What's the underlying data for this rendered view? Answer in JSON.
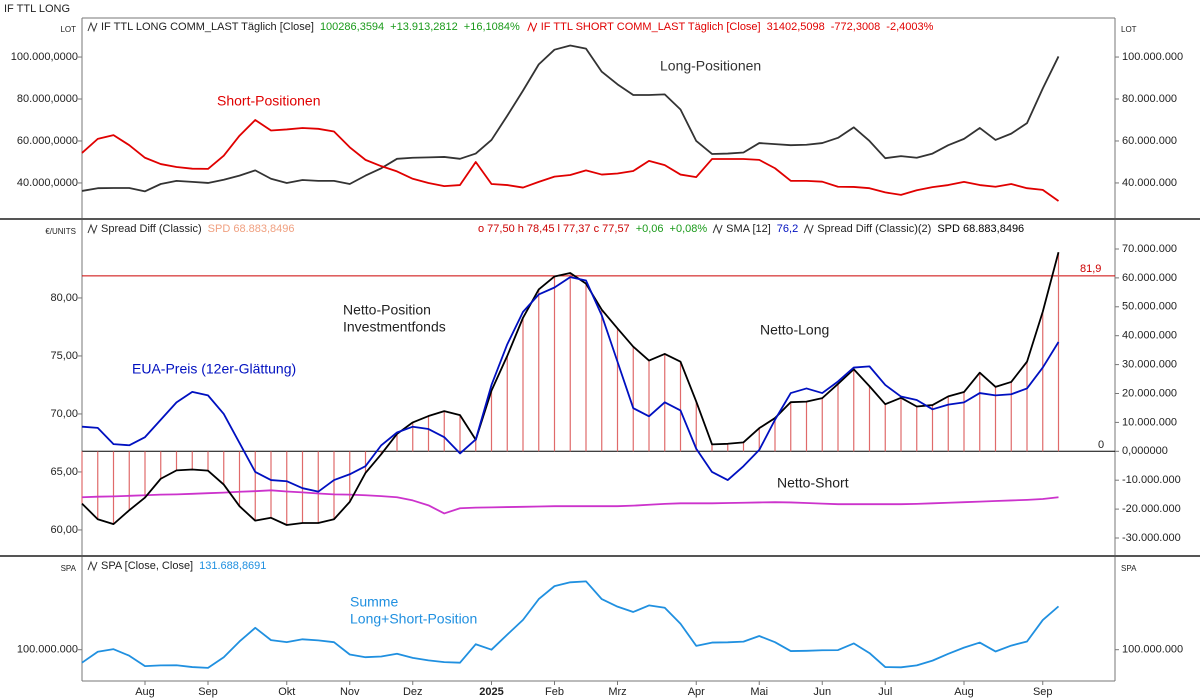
{
  "title": "IF TTL LONG",
  "chart_data": [
    {
      "type": "line",
      "y_unit_label": "LOT",
      "y2_unit_label": "LOT",
      "ylim": [
        23300,
        118600
      ],
      "yticks": [
        {
          "value": 40000,
          "label": "40.000,0000"
        },
        {
          "value": 60000,
          "label": "60.000,0000"
        },
        {
          "value": 80000,
          "label": "80.000,0000"
        },
        {
          "value": 100000,
          "label": "100.000,0000"
        }
      ],
      "y2lim": [
        23300000,
        118600000
      ],
      "y2ticks": [
        {
          "value": 40000000,
          "label": "40.000.000"
        },
        {
          "value": 60000000,
          "label": "60.000.000"
        },
        {
          "value": 80000000,
          "label": "80.000.000"
        },
        {
          "value": 100000000,
          "label": "100.000.000"
        }
      ],
      "series": [
        {
          "name": "IF TTL LONG COMM_LAST Täglich [Close]",
          "color": "#333333",
          "legend_color": "#1a9a1a",
          "legend_values": [
            "100286,3594",
            "+13.913,2812",
            "+16,1084%"
          ],
          "values": [
            36200,
            37500,
            37600,
            37600,
            36000,
            39500,
            41000,
            40500,
            40000,
            41500,
            43500,
            46000,
            42000,
            40000,
            41400,
            41000,
            41000,
            39500,
            43500,
            47000,
            51500,
            52000,
            52200,
            52400,
            51500,
            54000,
            60500,
            72000,
            84000,
            96500,
            103500,
            105500,
            104000,
            93000,
            87000,
            81900,
            81900,
            82200,
            75000,
            60000,
            53800,
            54000,
            54500,
            59000,
            58500,
            58000,
            58200,
            59000,
            61500,
            66500,
            60000,
            51800,
            52800,
            52000,
            54000,
            58000,
            61000,
            66200,
            60500,
            63500,
            68500,
            85000,
            100286.3594
          ]
        },
        {
          "name": "IF TTL SHORT COMM_LAST Täglich [Close]",
          "color": "#e00000",
          "legend_color": "#e00000",
          "legend_values": [
            "31402,5098",
            "-772,3008",
            "-2,4003%"
          ],
          "values": [
            54300,
            61000,
            62800,
            58000,
            52000,
            49000,
            47600,
            46800,
            46700,
            53000,
            62500,
            70000,
            65000,
            65500,
            66200,
            65800,
            64500,
            57000,
            51000,
            48000,
            45500,
            42000,
            40000,
            38500,
            39000,
            50000,
            39500,
            39000,
            37800,
            40500,
            43000,
            43800,
            46000,
            44000,
            44500,
            45700,
            50500,
            48500,
            44000,
            42800,
            51400,
            51400,
            51400,
            51000,
            47000,
            41000,
            41000,
            40600,
            38200,
            38100,
            37500,
            35500,
            34300,
            36500,
            38000,
            39000,
            40500,
            39000,
            38200,
            39500,
            37500,
            36700,
            31402.5098
          ]
        }
      ],
      "annotations": [
        {
          "lines": [
            "Long-Positionen"
          ],
          "color": "#333333"
        },
        {
          "lines": [
            "Short-Positionen"
          ],
          "color": "#e00000"
        }
      ]
    },
    {
      "type": "line",
      "y_unit_label": "€/UNITS",
      "ylim": [
        57.84,
        86.72
      ],
      "yticks": [
        {
          "value": 60,
          "label": "60,00"
        },
        {
          "value": 65,
          "label": "65,00"
        },
        {
          "value": 70,
          "label": "70,00"
        },
        {
          "value": 75,
          "label": "75,00"
        },
        {
          "value": 80,
          "label": "80,00"
        }
      ],
      "y2lim": [
        -35880000,
        80030000
      ],
      "y2ticks": [
        {
          "value": -30000000,
          "label": "-30.000.000"
        },
        {
          "value": -20000000,
          "label": "-20.000.000"
        },
        {
          "value": -10000000,
          "label": "-10.000.000"
        },
        {
          "value": 0,
          "label": "0,000000"
        },
        {
          "value": 10000000,
          "label": "10.000.000"
        },
        {
          "value": 20000000,
          "label": "20.000.000"
        },
        {
          "value": 30000000,
          "label": "30.000.000"
        },
        {
          "value": 40000000,
          "label": "40.000.000"
        },
        {
          "value": 50000000,
          "label": "50.000.000"
        },
        {
          "value": 60000000,
          "label": "60.000.000"
        },
        {
          "value": 70000000,
          "label": "70.000.000"
        }
      ],
      "ohlc_text": "o 77,50   h 78,45   l 77,37   c 77,57",
      "ohlc_change": [
        "+0,06",
        "+0,08%"
      ],
      "zero_label": "0",
      "ref_line": {
        "value": 81.9,
        "label": "81,9",
        "color": "#cc0000"
      },
      "series": [
        {
          "name": "Spread Diff (Classic)",
          "style": "bar",
          "axis": "y2",
          "color": "#e06a6a",
          "legend_color": "#f0a080",
          "legend_values": [
            "SPD 68.883,8496"
          ],
          "values": [
            -18100000,
            -23500000,
            -25200000,
            -20400000,
            -16000000,
            -9500000,
            -6600000,
            -6300000,
            -6700000,
            -11500000,
            -19000000,
            -24000000,
            -23000000,
            -25500000,
            -24800000,
            -24800000,
            -23500000,
            -17500000,
            -7500000,
            -1000000,
            6000000,
            10000000,
            12200000,
            13900000,
            12500000,
            4000000,
            21000000,
            33000000,
            46200000,
            56000000,
            60500000,
            61700000,
            58000000,
            49000000,
            42500000,
            36200000,
            31400000,
            33700000,
            31000000,
            17200000,
            2400000,
            2600000,
            3100000,
            8000000,
            11500000,
            17000000,
            17200000,
            18400000,
            23300000,
            28400000,
            22500000,
            16300000,
            18500000,
            15500000,
            16000000,
            19000000,
            20500000,
            27200000,
            22300000,
            24000000,
            31000000,
            48300000,
            68883849.6
          ]
        },
        {
          "axis": "y2",
          "color": "#cc33cc",
          "values": [
            -15900000,
            -15700000,
            -15600000,
            -15400000,
            -15200000,
            -15000000,
            -14900000,
            -14700000,
            -14500000,
            -14300000,
            -14000000,
            -13800000,
            -13500000,
            -13900000,
            -14200000,
            -14600000,
            -14900000,
            -15000000,
            -15200000,
            -15500000,
            -15900000,
            -17000000,
            -18700000,
            -21500000,
            -19700000,
            -19500000,
            -19400000,
            -19300000,
            -19200000,
            -19100000,
            -19000000,
            -19000000,
            -19000000,
            -19000000,
            -19000000,
            -18800000,
            -18500000,
            -18200000,
            -18000000,
            -18000000,
            -18000000,
            -17900000,
            -17800000,
            -17700000,
            -17600000,
            -17700000,
            -17900000,
            -18100000,
            -18300000,
            -18300000,
            -18300000,
            -18300000,
            -18300000,
            -18200000,
            -18000000,
            -17800000,
            -17600000,
            -17400000,
            -17200000,
            -17000000,
            -16800000,
            -16500000,
            -15900000
          ]
        },
        {
          "name": "Spread Diff (Classic)(2)",
          "axis": "y2",
          "color": "#000000",
          "legend_color": "#000000",
          "legend_values": [
            "SPD 68.883,8496"
          ],
          "values": [
            -18100000,
            -23500000,
            -25200000,
            -20400000,
            -16000000,
            -9500000,
            -6600000,
            -6300000,
            -6700000,
            -11500000,
            -19000000,
            -24000000,
            -23000000,
            -25500000,
            -24800000,
            -24800000,
            -23500000,
            -17500000,
            -7500000,
            -1000000,
            6000000,
            10000000,
            12200000,
            13900000,
            12500000,
            4000000,
            21000000,
            33000000,
            46200000,
            56000000,
            60500000,
            61700000,
            58000000,
            49000000,
            42500000,
            36200000,
            31400000,
            33700000,
            31000000,
            17200000,
            2400000,
            2600000,
            3100000,
            8000000,
            11500000,
            17000000,
            17200000,
            18400000,
            23300000,
            28400000,
            22500000,
            16300000,
            18500000,
            15500000,
            16000000,
            19000000,
            20500000,
            27200000,
            22300000,
            24000000,
            31000000,
            48300000,
            68883849.6
          ]
        },
        {
          "name": "SMA  [12]",
          "axis": "y",
          "color": "#0010c0",
          "legend_color": "#0010c0",
          "legend_values": [
            "76,2"
          ],
          "values": [
            68.9,
            68.8,
            67.4,
            67.3,
            68.0,
            69.5,
            71.0,
            71.9,
            71.6,
            70.0,
            67.5,
            65.0,
            64.3,
            64.2,
            63.6,
            63.3,
            64.3,
            64.8,
            65.5,
            67.3,
            68.4,
            68.9,
            68.7,
            68.0,
            66.6,
            67.8,
            72.5,
            76.0,
            78.8,
            80.3,
            80.9,
            81.8,
            81.5,
            78.5,
            74.5,
            70.5,
            69.8,
            71.0,
            70.3,
            67.0,
            65.0,
            64.3,
            65.5,
            66.9,
            69.5,
            71.8,
            72.2,
            71.8,
            72.8,
            74.0,
            74.1,
            72.5,
            71.5,
            71.2,
            70.4,
            70.8,
            71.0,
            71.8,
            71.6,
            71.7,
            72.2,
            74.0,
            76.2
          ]
        }
      ],
      "annotations": [
        {
          "lines": [
            "Netto-Position",
            "Investmentfonds"
          ],
          "color": "#222222"
        },
        {
          "lines": [
            "Netto-Long"
          ],
          "color": "#222222"
        },
        {
          "lines": [
            "EUA-Preis (12er-Glättung)"
          ],
          "color": "#0010c0"
        },
        {
          "lines": [
            "Netto-Short"
          ],
          "color": "#222222"
        }
      ]
    },
    {
      "type": "line",
      "y_unit_label": "SPA",
      "y2_unit_label": "SPA",
      "ylim": [
        77100000,
        167800000
      ],
      "yticks": [
        {
          "value": 100000000,
          "label": "100.000.000"
        }
      ],
      "categories": [
        null,
        null,
        null,
        null,
        "Aug",
        null,
        null,
        null,
        "Sep",
        null,
        null,
        null,
        null,
        "Okt",
        null,
        null,
        null,
        "Nov",
        null,
        null,
        null,
        "Dez",
        null,
        null,
        null,
        null,
        "2025",
        null,
        null,
        null,
        "Feb",
        null,
        null,
        null,
        "Mrz",
        null,
        null,
        null,
        null,
        "Apr",
        null,
        null,
        null,
        "Mai",
        null,
        null,
        null,
        "Jun",
        null,
        null,
        null,
        "Jul",
        null,
        null,
        null,
        null,
        "Aug",
        null,
        null,
        null,
        null,
        "Sep",
        null
      ],
      "series": [
        {
          "name": "SPA [Close, Close]",
          "color": "#2090e0",
          "legend_color": "#2090e0",
          "legend_values": [
            "131.688,8691"
          ],
          "values": [
            90500000,
            98500000,
            100400000,
            95600000,
            88000000,
            88500000,
            88600000,
            87300000,
            86700000,
            94500000,
            106000000,
            116000000,
            107000000,
            105500000,
            107600000,
            106800000,
            105500000,
            96500000,
            94500000,
            95000000,
            97000000,
            94000000,
            92200000,
            90900000,
            90500000,
            104000000,
            100000000,
            111000000,
            121800000,
            137000000,
            146500000,
            149300000,
            150000000,
            137000000,
            131500000,
            127600000,
            132400000,
            130700000,
            119000000,
            102800000,
            105200000,
            105400000,
            105900000,
            110000000,
            105500000,
            99000000,
            99200000,
            99600000,
            99700000,
            104600000,
            97500000,
            87300000,
            87100000,
            88500000,
            92000000,
            97000000,
            101500000,
            105200000,
            98700000,
            103000000,
            106000000,
            121700000,
            131688869.1
          ]
        }
      ],
      "annotations": [
        {
          "lines": [
            "Summe",
            "Long+Short-Position"
          ],
          "color": "#2090e0"
        }
      ]
    }
  ]
}
